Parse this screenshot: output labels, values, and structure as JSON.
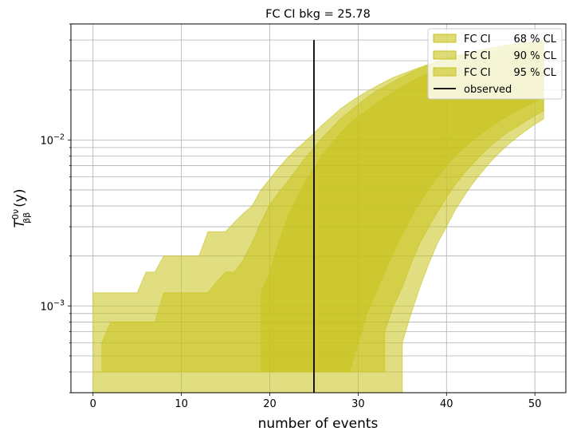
{
  "chart_data": {
    "type": "area",
    "title": "FC CI bkg = 25.78",
    "xlabel": "number of events",
    "ylabel": "T",
    "ylabel_sup": "0ν",
    "ylabel_sub": "ββ",
    "ylabel_unit": "(y)",
    "yscale": "log",
    "xlim": [
      -2.5,
      53.5
    ],
    "ylim": [
      0.0003,
      0.05
    ],
    "xticks": [
      0,
      10,
      20,
      30,
      40,
      50
    ],
    "yticks": [
      0.001,
      0.01
    ],
    "ytick_labels": [
      {
        "base": "10",
        "exp": "−3"
      },
      {
        "base": "10",
        "exp": "−2"
      }
    ],
    "grid": true,
    "legend_position": "upper-right",
    "series": [
      {
        "name": "FC CI",
        "cl_label": "68 % CL",
        "color": "#c8c31c",
        "upper": [
          [
            17,
            0.0004
          ],
          [
            19,
            0.0004
          ],
          [
            19,
            0.0012
          ],
          [
            20,
            0.0016
          ],
          [
            21,
            0.0024
          ],
          [
            22,
            0.0034
          ],
          [
            23,
            0.0044
          ],
          [
            24,
            0.0056
          ],
          [
            25,
            0.0068
          ],
          [
            26,
            0.0082
          ],
          [
            27,
            0.0095
          ],
          [
            28,
            0.011
          ],
          [
            29,
            0.0125
          ],
          [
            30,
            0.0138
          ],
          [
            31,
            0.015
          ],
          [
            32,
            0.0165
          ],
          [
            33,
            0.018
          ],
          [
            34,
            0.0195
          ],
          [
            35,
            0.021
          ],
          [
            36,
            0.0225
          ],
          [
            37,
            0.024
          ],
          [
            38,
            0.025
          ],
          [
            39,
            0.0265
          ],
          [
            40,
            0.028
          ],
          [
            41,
            0.029
          ],
          [
            42,
            0.03
          ],
          [
            43,
            0.031
          ],
          [
            44,
            0.032
          ],
          [
            45,
            0.033
          ],
          [
            46,
            0.034
          ],
          [
            47,
            0.035
          ],
          [
            48,
            0.0355
          ],
          [
            49,
            0.036
          ],
          [
            50,
            0.0365
          ],
          [
            51,
            0.037
          ]
        ],
        "lower": [
          [
            17,
            0.0004
          ],
          [
            29,
            0.0004
          ],
          [
            30,
            0.0006
          ],
          [
            31,
            0.0009
          ],
          [
            32,
            0.0012
          ],
          [
            33,
            0.0016
          ],
          [
            34,
            0.0021
          ],
          [
            35,
            0.0027
          ],
          [
            36,
            0.0034
          ],
          [
            37,
            0.0042
          ],
          [
            38,
            0.0051
          ],
          [
            39,
            0.006
          ],
          [
            40,
            0.007
          ],
          [
            41,
            0.008
          ],
          [
            42,
            0.009
          ],
          [
            43,
            0.01
          ],
          [
            44,
            0.011
          ],
          [
            45,
            0.012
          ],
          [
            46,
            0.013
          ],
          [
            47,
            0.014
          ],
          [
            48,
            0.015
          ],
          [
            49,
            0.016
          ],
          [
            50,
            0.017
          ],
          [
            51,
            0.018
          ]
        ]
      },
      {
        "name": "FC CI",
        "cl_label": "90 % CL",
        "color": "#c8c31c",
        "upper": [
          [
            0,
            0.0004
          ],
          [
            1,
            0.0004
          ],
          [
            1,
            0.0006
          ],
          [
            2,
            0.0008
          ],
          [
            7,
            0.0008
          ],
          [
            8,
            0.0012
          ],
          [
            13,
            0.0012
          ],
          [
            14,
            0.0014
          ],
          [
            15,
            0.0016
          ],
          [
            16,
            0.0016
          ],
          [
            17,
            0.0019
          ],
          [
            18,
            0.0024
          ],
          [
            19,
            0.0032
          ],
          [
            20,
            0.0041
          ],
          [
            21,
            0.0048
          ],
          [
            22,
            0.0056
          ],
          [
            23,
            0.0066
          ],
          [
            24,
            0.0078
          ],
          [
            25,
            0.009
          ],
          [
            26,
            0.0104
          ],
          [
            27,
            0.0118
          ],
          [
            28,
            0.0134
          ],
          [
            29,
            0.0148
          ],
          [
            30,
            0.0164
          ],
          [
            31,
            0.018
          ],
          [
            32,
            0.0196
          ],
          [
            33,
            0.021
          ],
          [
            34,
            0.0225
          ],
          [
            35,
            0.024
          ],
          [
            36,
            0.0256
          ],
          [
            37,
            0.027
          ],
          [
            38,
            0.0284
          ],
          [
            39,
            0.0298
          ],
          [
            40,
            0.031
          ],
          [
            41,
            0.032
          ],
          [
            42,
            0.033
          ],
          [
            43,
            0.034
          ],
          [
            44,
            0.035
          ],
          [
            45,
            0.0358
          ],
          [
            46,
            0.0366
          ],
          [
            47,
            0.0374
          ],
          [
            48,
            0.038
          ],
          [
            49,
            0.0386
          ],
          [
            50,
            0.039
          ],
          [
            51,
            0.0395
          ]
        ],
        "lower": [
          [
            0,
            0.0004
          ],
          [
            33,
            0.0004
          ],
          [
            33,
            0.0007
          ],
          [
            34,
            0.001
          ],
          [
            35,
            0.0013
          ],
          [
            36,
            0.0018
          ],
          [
            37,
            0.0024
          ],
          [
            38,
            0.003
          ],
          [
            39,
            0.0037
          ],
          [
            40,
            0.0045
          ],
          [
            41,
            0.0054
          ],
          [
            42,
            0.0063
          ],
          [
            43,
            0.0072
          ],
          [
            44,
            0.0082
          ],
          [
            45,
            0.0092
          ],
          [
            46,
            0.0102
          ],
          [
            47,
            0.0112
          ],
          [
            48,
            0.012
          ],
          [
            49,
            0.013
          ],
          [
            50,
            0.014
          ],
          [
            51,
            0.015
          ]
        ]
      },
      {
        "name": "FC CI",
        "cl_label": "95 % CL",
        "color": "#c8c31c",
        "upper": [
          [
            0,
            0.0012
          ],
          [
            5,
            0.0012
          ],
          [
            6,
            0.0016
          ],
          [
            7,
            0.0016
          ],
          [
            8,
            0.002
          ],
          [
            12,
            0.002
          ],
          [
            13,
            0.0028
          ],
          [
            15,
            0.0028
          ],
          [
            16,
            0.0032
          ],
          [
            17,
            0.0036
          ],
          [
            18,
            0.004
          ],
          [
            19,
            0.005
          ],
          [
            20,
            0.0058
          ],
          [
            21,
            0.0068
          ],
          [
            22,
            0.0078
          ],
          [
            23,
            0.0088
          ],
          [
            24,
            0.0098
          ],
          [
            25,
            0.011
          ],
          [
            26,
            0.0124
          ],
          [
            27,
            0.0138
          ],
          [
            28,
            0.0154
          ],
          [
            29,
            0.0168
          ],
          [
            30,
            0.0182
          ],
          [
            31,
            0.0196
          ],
          [
            32,
            0.021
          ],
          [
            33,
            0.0224
          ],
          [
            34,
            0.0238
          ],
          [
            35,
            0.025
          ],
          [
            36,
            0.0262
          ],
          [
            37,
            0.0274
          ],
          [
            38,
            0.0286
          ],
          [
            39,
            0.0298
          ],
          [
            40,
            0.031
          ],
          [
            41,
            0.032
          ],
          [
            42,
            0.033
          ],
          [
            43,
            0.034
          ],
          [
            44,
            0.035
          ],
          [
            45,
            0.0358
          ],
          [
            46,
            0.0366
          ],
          [
            47,
            0.0374
          ],
          [
            48,
            0.038
          ],
          [
            49,
            0.0386
          ],
          [
            50,
            0.039
          ],
          [
            51,
            0.0395
          ]
        ],
        "lower": [
          [
            0,
            0.0003
          ],
          [
            35,
            0.0003
          ],
          [
            35,
            0.0006
          ],
          [
            36,
            0.0009
          ],
          [
            37,
            0.0013
          ],
          [
            38,
            0.0018
          ],
          [
            39,
            0.0024
          ],
          [
            40,
            0.003
          ],
          [
            41,
            0.0038
          ],
          [
            42,
            0.0046
          ],
          [
            43,
            0.0055
          ],
          [
            44,
            0.0064
          ],
          [
            45,
            0.0074
          ],
          [
            46,
            0.0084
          ],
          [
            47,
            0.0094
          ],
          [
            48,
            0.0104
          ],
          [
            49,
            0.0114
          ],
          [
            50,
            0.0124
          ],
          [
            51,
            0.0134
          ]
        ]
      }
    ],
    "observed": {
      "name": "observed",
      "x": 25,
      "y_range": [
        0.0003,
        0.04
      ],
      "color": "#000000"
    }
  }
}
